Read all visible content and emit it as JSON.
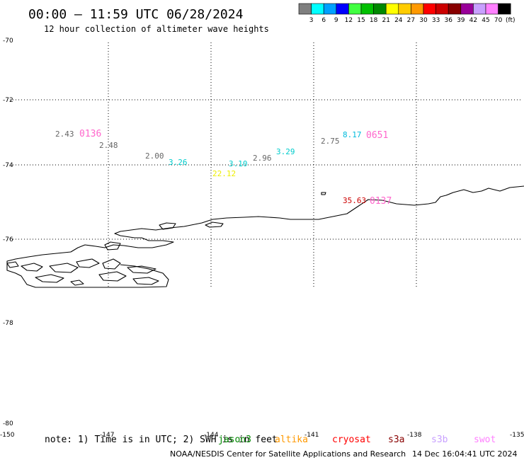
{
  "header": {
    "title": "00:00 – 11:59 UTC 06/28/2024",
    "subtitle": "12 hour collection of altimeter wave heights"
  },
  "colorbar": {
    "colors": [
      "#7f7f7f",
      "#00ffff",
      "#00a0ff",
      "#0000ff",
      "#40ff40",
      "#00c000",
      "#008800",
      "#ffff00",
      "#ffcc00",
      "#ff9900",
      "#ff0000",
      "#cc0000",
      "#880000",
      "#990099",
      "#c8a0ff",
      "#ff80ff",
      "#000000"
    ],
    "labels": [
      "3",
      "6",
      "9",
      "12",
      "15",
      "18",
      "21",
      "24",
      "27",
      "30",
      "33",
      "36",
      "39",
      "42",
      "45",
      "70"
    ],
    "unit": "(ft)"
  },
  "axes": {
    "lat_labels_top": [
      "-70",
      "-72",
      "-74",
      "-76"
    ],
    "lat_labels_bottom": [
      "-78",
      "-80"
    ],
    "lon_labels": [
      "-150",
      "-147",
      "-144",
      "-141",
      "-138",
      "-135"
    ]
  },
  "observations": [
    {
      "text": "2.43",
      "color": "#666666"
    },
    {
      "text": "0136",
      "color": "#ff66cc",
      "big": true
    },
    {
      "text": "2.48",
      "color": "#666666"
    },
    {
      "text": "2.00",
      "color": "#666666"
    },
    {
      "text": "3.26",
      "color": "#00cccc"
    },
    {
      "text": "22.12",
      "color": "#eeee00"
    },
    {
      "text": "3.10",
      "color": "#00cccc"
    },
    {
      "text": "2.96",
      "color": "#666666"
    },
    {
      "text": "3.29",
      "color": "#00cccc"
    },
    {
      "text": "2.75",
      "color": "#666666"
    },
    {
      "text": "8.17",
      "color": "#00bbdd"
    },
    {
      "text": "0651",
      "color": "#ff66cc",
      "big": true
    },
    {
      "text": "35.63",
      "color": "#cc0000"
    },
    {
      "text": "0137",
      "color": "#ff66cc",
      "big": true
    }
  ],
  "footer": {
    "note": "note: 1) Time is in UTC; 2) SWH is in feet",
    "satellites": [
      {
        "name": "jason3",
        "color": "#008800"
      },
      {
        "name": "altika",
        "color": "#ff9900"
      },
      {
        "name": "cryosat",
        "color": "#ff0000"
      },
      {
        "name": "s3a",
        "color": "#880000"
      },
      {
        "name": "s3b",
        "color": "#c8a0ff"
      },
      {
        "name": "swot",
        "color": "#ff80ff"
      }
    ],
    "credit": "NOAA/NESDIS Center for Satellite Applications and Research",
    "timestamp": "14 Dec 16:04:41 UTC 2024"
  }
}
